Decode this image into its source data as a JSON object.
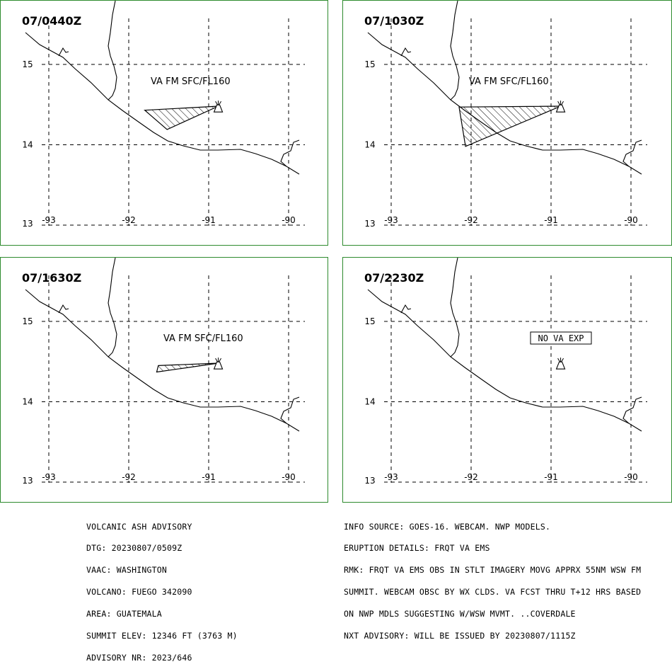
{
  "panels": [
    {
      "timestamp": "07/0440Z",
      "label": "VA FM SFC/FL160",
      "ash": [
        [
          -91.8,
          14.43
        ],
        [
          -90.88,
          14.48
        ],
        [
          -91.52,
          14.19
        ]
      ]
    },
    {
      "timestamp": "07/1030Z",
      "label": "VA FM SFC/FL160",
      "ash": [
        [
          -92.15,
          14.47
        ],
        [
          -90.88,
          14.48
        ],
        [
          -92.07,
          13.98
        ]
      ]
    },
    {
      "timestamp": "07/1630Z",
      "label": "VA FM SFC/FL160",
      "ash": [
        [
          -91.63,
          14.45
        ],
        [
          -90.88,
          14.48
        ],
        [
          -91.65,
          14.37
        ]
      ]
    },
    {
      "timestamp": "07/2230Z",
      "label": "NO VA EXP",
      "ash": null
    }
  ],
  "axes": {
    "lon_ticks": [
      "-93",
      "-92",
      "-91",
      "-90"
    ],
    "lat_ticks": [
      "15",
      "14",
      "13"
    ]
  },
  "volcano": {
    "lon": -90.88,
    "lat": 14.47
  },
  "advisory": {
    "lines": [
      "VOLCANIC ASH ADVISORY",
      "DTG: 20230807/0509Z",
      "VAAC: WASHINGTON",
      "VOLCANO: FUEGO 342090",
      "AREA: GUATEMALA",
      "SUMMIT ELEV: 12346 FT (3763 M)",
      "ADVISORY NR: 2023/646"
    ]
  },
  "info": {
    "lines": [
      "INFO SOURCE: GOES-16. WEBCAM. NWP MODELS.",
      "ERUPTION DETAILS: FRQT VA EMS",
      "RMK: FRQT VA EMS OBS IN STLT IMAGERY MOVG APPRX 55NM WSW FM",
      "SUMMIT. WEBCAM OBSC BY WX CLDS. VA FCST THRU T+12 HRS BASED",
      "ON NWP MDLS SUGGESTING W/WSW MVMT. ..COVERDALE",
      "NXT ADVISORY: WILL BE ISSUED BY 20230807/1115Z"
    ]
  },
  "colors": {
    "frame": "#2e8b2e",
    "lines": "#000000"
  }
}
